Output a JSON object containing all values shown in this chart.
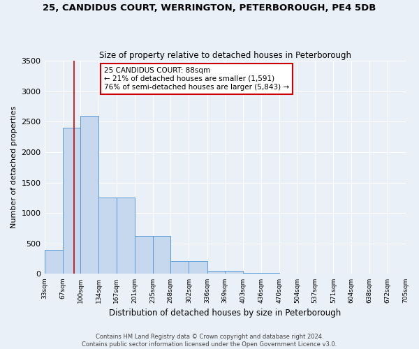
{
  "title": "25, CANDIDUS COURT, WERRINGTON, PETERBOROUGH, PE4 5DB",
  "subtitle": "Size of property relative to detached houses in Peterborough",
  "xlabel": "Distribution of detached houses by size in Peterborough",
  "ylabel": "Number of detached properties",
  "footnote1": "Contains HM Land Registry data © Crown copyright and database right 2024.",
  "footnote2": "Contains public sector information licensed under the Open Government Licence v3.0.",
  "bin_edges": [
    33,
    67,
    100,
    134,
    167,
    201,
    235,
    268,
    302,
    336,
    369,
    403,
    436,
    470,
    504,
    537,
    571,
    604,
    638,
    672,
    705
  ],
  "bar_heights": [
    400,
    2400,
    2600,
    1250,
    1250,
    620,
    620,
    210,
    210,
    55,
    55,
    20,
    20,
    5,
    5,
    2,
    2,
    1,
    1,
    0
  ],
  "bar_color": "#c5d8ed",
  "bar_edge_color": "#5b9bd5",
  "bg_color": "#eaf0f8",
  "grid_color": "#ffffff",
  "property_size": 88,
  "annotation_text": "25 CANDIDUS COURT: 88sqm\n← 21% of detached houses are smaller (1,591)\n76% of semi-detached houses are larger (5,843) →",
  "annotation_box_color": "#cc0000",
  "red_line_color": "#cc0000",
  "ylim": [
    0,
    3500
  ],
  "yticks": [
    0,
    500,
    1000,
    1500,
    2000,
    2500,
    3000,
    3500
  ]
}
